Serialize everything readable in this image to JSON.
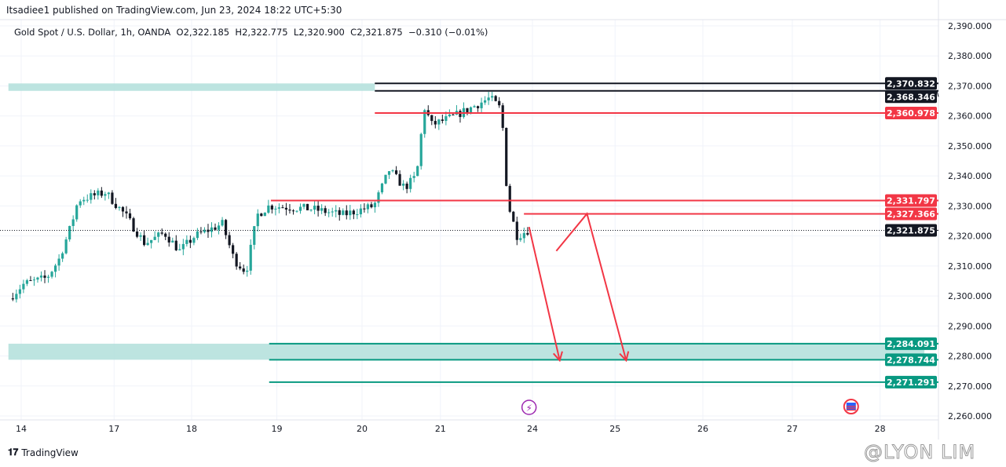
{
  "header": {
    "published": "Itsadiee1 published on TradingView.com, Jun 23, 2024 18:22 UTC+5:30"
  },
  "legend": "Gold Spot / U.S. Dollar, 1h, OANDA  O2,322.185  H2,322.775  L2,320.900  C2,321.875  −0.310 (−0.01%)",
  "brand": "TradingView",
  "watermark": "@LYON LIM",
  "colors": {
    "up": "#26a69a",
    "down": "#131722",
    "red": "#f23645",
    "teal": "#089981",
    "zone": "#b2dfdb"
  },
  "chart_data": {
    "type": "candlestick",
    "title": "Gold Spot / U.S. Dollar, 1h, OANDA",
    "ylim": [
      2255,
      2393
    ],
    "y_ticks": [
      "2,390.000",
      "2,380.000",
      "2,370.000",
      "2,360.000",
      "2,350.000",
      "2,340.000",
      "2,330.000",
      "2,320.000",
      "2,310.000",
      "2,300.000",
      "2,290.000",
      "2,280.000",
      "2,270.000",
      "2,260.000"
    ],
    "y_tick_values": [
      2390,
      2380,
      2370,
      2360,
      2350,
      2340,
      2330,
      2320,
      2310,
      2300,
      2290,
      2280,
      2270,
      2260
    ],
    "x_ticks": [
      {
        "label": "14",
        "t": 0
      },
      {
        "label": "17",
        "t": 1.09
      },
      {
        "label": "18",
        "t": 2.0
      },
      {
        "label": "19",
        "t": 3.0
      },
      {
        "label": "20",
        "t": 4.0
      },
      {
        "label": "21",
        "t": 4.92
      },
      {
        "label": "24",
        "t": 6.0
      },
      {
        "label": "25",
        "t": 6.97
      },
      {
        "label": "26",
        "t": 8.0
      },
      {
        "label": "27",
        "t": 9.05
      },
      {
        "label": "28",
        "t": 10.08
      }
    ],
    "price_path": [
      [
        -0.14,
        2299.2
      ],
      [
        0.03,
        2304
      ],
      [
        0.3,
        2306
      ],
      [
        0.44,
        2312
      ],
      [
        0.58,
        2323
      ],
      [
        0.67,
        2332
      ],
      [
        0.99,
        2334.5
      ],
      [
        1.22,
        2327
      ],
      [
        1.45,
        2317.5
      ],
      [
        1.68,
        2321
      ],
      [
        1.86,
        2315
      ],
      [
        2.04,
        2320
      ],
      [
        2.36,
        2324
      ],
      [
        2.5,
        2312
      ],
      [
        2.64,
        2308
      ],
      [
        2.77,
        2327
      ],
      [
        2.91,
        2330
      ],
      [
        3.41,
        2329
      ],
      [
        3.77,
        2327
      ],
      [
        4.14,
        2330
      ],
      [
        4.32,
        2342
      ],
      [
        4.5,
        2336
      ],
      [
        4.64,
        2340
      ],
      [
        4.73,
        2363
      ],
      [
        4.82,
        2357
      ],
      [
        5.05,
        2359.5
      ],
      [
        5.23,
        2362
      ],
      [
        5.5,
        2366
      ],
      [
        5.64,
        2362
      ],
      [
        5.68,
        2341
      ],
      [
        5.73,
        2329
      ],
      [
        5.82,
        2320
      ],
      [
        5.95,
        2322
      ]
    ],
    "last_price": {
      "value": 2321.875,
      "label": "2,321.875"
    },
    "levels": [
      {
        "value": 2370.832,
        "label": "2,370.832",
        "color": "#131722",
        "from_t": 4.15
      },
      {
        "value": 2368.346,
        "label": "2,368.346",
        "color": "#131722",
        "from_t": 4.15
      },
      {
        "value": 2360.978,
        "label": "2,360.978",
        "color": "#f23645",
        "from_t": 4.15
      },
      {
        "value": 2331.797,
        "label": "2,331.797",
        "color": "#f23645",
        "from_t": 2.93
      },
      {
        "value": 2327.366,
        "label": "2,327.366",
        "color": "#f23645",
        "from_t": 5.9
      },
      {
        "value": 2284.091,
        "label": "2,284.091",
        "color": "#089981",
        "from_t": 2.91
      },
      {
        "value": 2278.744,
        "label": "2,278.744",
        "color": "#089981",
        "from_t": 2.91
      },
      {
        "value": 2271.291,
        "label": "2,271.291",
        "color": "#089981",
        "from_t": 2.91
      }
    ],
    "zones": [
      {
        "from": 2368.346,
        "to": 2370.832,
        "from_t": -0.15,
        "to_t": 4.15
      },
      {
        "from": 2278.744,
        "to": 2284.091,
        "from_t": -0.15,
        "to_t": 10.6
      }
    ],
    "arrows": [
      {
        "points": [
          [
            5.96,
            2323
          ],
          [
            6.32,
            2278.5
          ]
        ]
      },
      {
        "points": [
          [
            6.28,
            2315
          ],
          [
            6.64,
            2327.4
          ],
          [
            7.1,
            2278.5
          ]
        ]
      }
    ],
    "events": [
      {
        "icon": "lightning-icon",
        "t": 5.96
      },
      {
        "icon": "us-flag-icon",
        "t": 9.74
      }
    ]
  }
}
